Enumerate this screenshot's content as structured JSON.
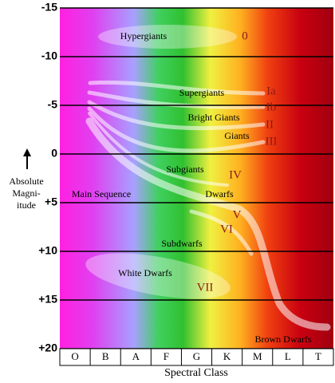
{
  "chart_data": {
    "type": "hr-diagram",
    "x_label": "Spectral Class",
    "y_label_lines": [
      "Absolute",
      "Magni-",
      "itude"
    ],
    "categories": [
      "O",
      "B",
      "A",
      "F",
      "G",
      "K",
      "M",
      "L",
      "T"
    ],
    "ylim": [
      -15,
      20
    ],
    "yticks": [
      -15,
      -10,
      -5,
      0,
      {
        "value": 5,
        "label": "+5"
      },
      {
        "value": 10,
        "label": "+10"
      },
      {
        "value": 15,
        "label": "+15"
      },
      {
        "value": 20,
        "label": "+20"
      }
    ],
    "grid": true,
    "annotations": [
      "Hypergiants",
      "0",
      "Supergiants",
      "Ia",
      "Bright Giants",
      "Ib",
      "II",
      "Giants",
      "III",
      "Subgiants",
      "IV",
      "Main Sequence",
      "Dwarfs",
      "V",
      "VI",
      "Subdwarfs",
      "White Dwarfs",
      "VII",
      "Brown Dwarfs"
    ]
  }
}
